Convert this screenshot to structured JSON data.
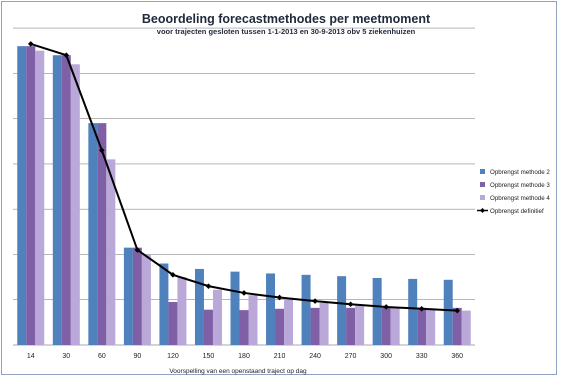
{
  "chart_data": {
    "type": "bar",
    "title": "Beoordeling forecastmethodes per meetmoment",
    "subtitle": "voor trajecten gesloten tussen 1-1-2013 en 30-9-2013 obv 5 ziekenhuizen",
    "xlabel": "Voorspelling van een openstaand traject op dag",
    "ylabel": "",
    "ylim": [
      0,
      7.2
    ],
    "grid": true,
    "legend_position": "right",
    "categories": [
      "14",
      "30",
      "60",
      "90",
      "120",
      "150",
      "180",
      "210",
      "240",
      "270",
      "300",
      "330",
      "360"
    ],
    "series": [
      {
        "name": "Opbrengst methode 2",
        "kind": "bar",
        "color": "#4f81bd",
        "values": [
          6.6,
          6.4,
          4.9,
          2.15,
          1.8,
          1.68,
          1.62,
          1.58,
          1.55,
          1.52,
          1.48,
          1.46,
          1.44
        ]
      },
      {
        "name": "Opbrengst methode 3",
        "kind": "bar",
        "color": "#7f5fa6",
        "values": [
          6.6,
          6.4,
          4.9,
          2.15,
          0.95,
          0.78,
          0.77,
          0.8,
          0.82,
          0.82,
          0.82,
          0.82,
          0.82
        ]
      },
      {
        "name": "Opbrengst methode 4",
        "kind": "bar",
        "color": "#b9a8d8",
        "values": [
          6.5,
          6.2,
          4.1,
          2.0,
          1.5,
          1.22,
          1.1,
          1.0,
          0.93,
          0.88,
          0.84,
          0.8,
          0.76
        ]
      },
      {
        "name": "Opbrengst definitief",
        "kind": "line",
        "color": "#000000",
        "values": [
          6.65,
          6.4,
          4.3,
          2.1,
          1.55,
          1.3,
          1.15,
          1.05,
          0.97,
          0.9,
          0.84,
          0.8,
          0.76
        ]
      }
    ]
  }
}
